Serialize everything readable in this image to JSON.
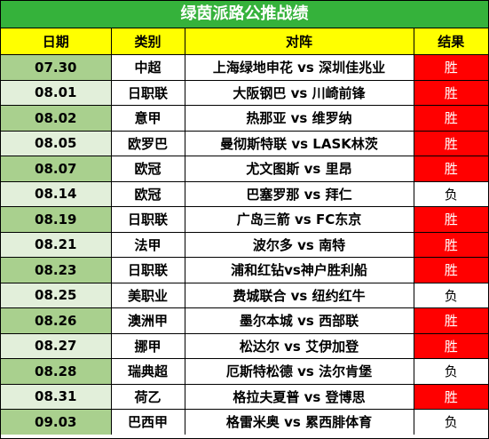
{
  "title": "绿茵派路公推战绩",
  "headers": [
    "日期",
    "类别",
    "对阵",
    "结果"
  ],
  "rows": [
    {
      "date": "07.30",
      "category": "中超",
      "match": "上海绿地申花 vs 深圳佳兆业",
      "result": "胜"
    },
    {
      "date": "08.01",
      "category": "日职联",
      "match": "大阪钢巴 vs 川崎前锋",
      "result": "胜"
    },
    {
      "date": "08.02",
      "category": "意甲",
      "match": "热那亚 vs 维罗纳",
      "result": "胜"
    },
    {
      "date": "08.05",
      "category": "欧罗巴",
      "match": "曼彻斯特联 vs LASK林茨",
      "result": "胜"
    },
    {
      "date": "08.07",
      "category": "欧冠",
      "match": "尤文图斯 vs 里昂",
      "result": "胜"
    },
    {
      "date": "08.14",
      "category": "欧冠",
      "match": "巴塞罗那 vs 拜仁",
      "result": "负"
    },
    {
      "date": "08.19",
      "category": "日职联",
      "match": "广岛三箭 vs FC东京",
      "result": "胜"
    },
    {
      "date": "08.21",
      "category": "法甲",
      "match": "波尔多 vs 南特",
      "result": "胜"
    },
    {
      "date": "08.23",
      "category": "日职联",
      "match": "浦和红钻vs神户胜利船",
      "result": "胜"
    },
    {
      "date": "08.25",
      "category": "美职业",
      "match": "费城联合 vs 纽约红牛",
      "result": "负"
    },
    {
      "date": "08.26",
      "category": "澳洲甲",
      "match": "墨尔本城 vs 西部联",
      "result": "胜"
    },
    {
      "date": "08.27",
      "category": "挪甲",
      "match": "松达尔 vs 艾伊加登",
      "result": "胜"
    },
    {
      "date": "08.28",
      "category": "瑞典超",
      "match": "厄斯特松德 vs 法尔肯堡",
      "result": "负"
    },
    {
      "date": "08.31",
      "category": "荷乙",
      "match": "格拉夫夏普 vs 登博思",
      "result": "胜"
    },
    {
      "date": "09.03",
      "category": "巴西甲",
      "match": "格雷米奥 vs 累西腓体育",
      "result": "负"
    }
  ],
  "colors": {
    "title_bg": "#35b23b",
    "header_bg": "#ffff00",
    "date_odd": "#a9d08e",
    "date_even": "#e2efda",
    "win_bg": "#ff0000"
  }
}
